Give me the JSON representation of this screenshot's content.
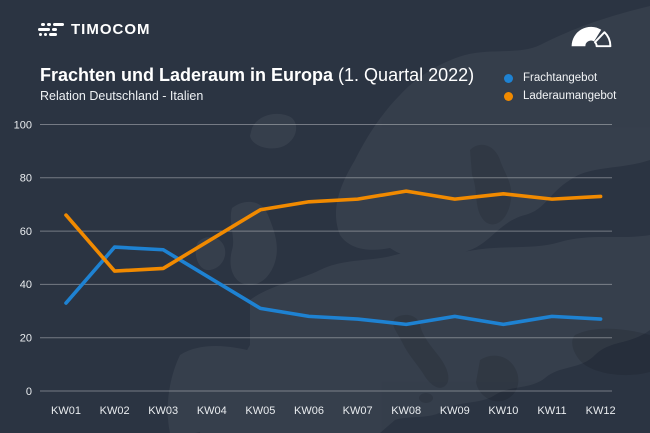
{
  "brand": {
    "name": "TIMOCOM",
    "logo_icon": "road-lanes-icon",
    "header_icon": "speedometer-gauge-icon"
  },
  "chart_data": {
    "type": "line",
    "title": "Frachten und Laderaum in Europa",
    "title_suffix": "(1. Quartal 2022)",
    "subtitle": "Relation Deutschland - Italien",
    "categories": [
      "KW01",
      "KW02",
      "KW03",
      "KW04",
      "KW05",
      "KW06",
      "KW07",
      "KW08",
      "KW09",
      "KW10",
      "KW11",
      "KW12"
    ],
    "series": [
      {
        "name": "Frachtangebot",
        "color": "#1e82d2",
        "values": [
          33,
          54,
          53,
          42,
          31,
          28,
          27,
          25,
          28,
          25,
          28,
          27
        ]
      },
      {
        "name": "Laderaumangebot",
        "color": "#f18a00",
        "values": [
          66,
          45,
          46,
          57,
          68,
          71,
          72,
          75,
          72,
          74,
          72,
          73
        ]
      }
    ],
    "ylim": [
      0,
      100
    ],
    "yticks": [
      100,
      80,
      60,
      40,
      20,
      0
    ],
    "grid": "horizontal",
    "legend_position": "top-right",
    "colors": {
      "background": "#2b3442",
      "grid": "rgba(255,255,255,0.35)",
      "text": "#ffffff"
    }
  }
}
